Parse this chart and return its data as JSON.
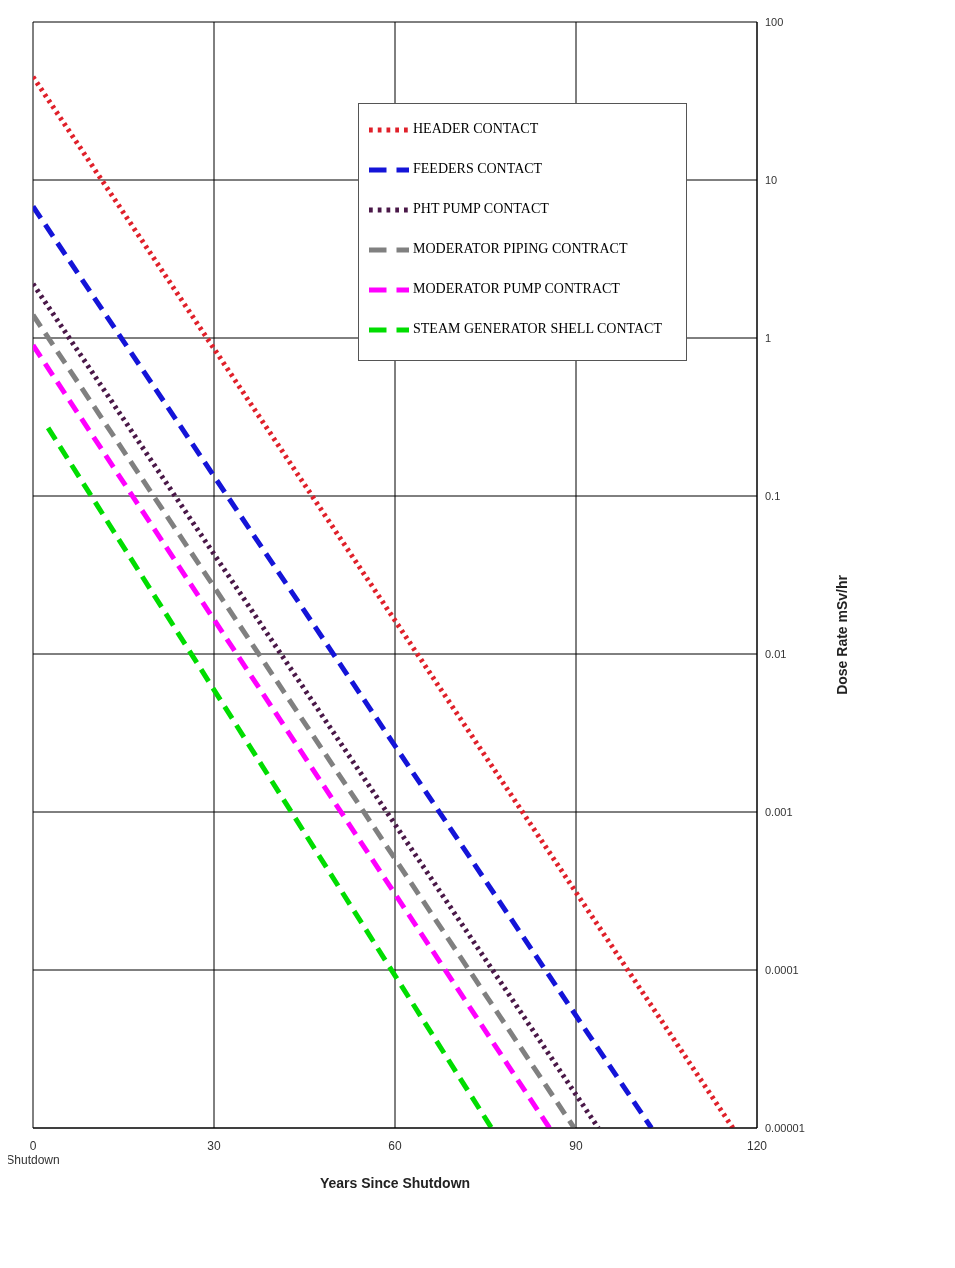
{
  "chart_data": {
    "type": "line",
    "xlabel": "Years Since Shutdown",
    "ylabel": "Dose Rate mSv/hr",
    "xlim": [
      0,
      120
    ],
    "xticks": [
      {
        "value": 0,
        "label": "0\nShutdown"
      },
      30,
      60,
      90,
      120
    ],
    "ylim": [
      1e-05,
      100
    ],
    "yticks": [
      {
        "value": 1e-05,
        "label": "0.00001"
      },
      0.0001,
      0.001,
      0.01,
      0.1,
      1,
      10,
      100
    ],
    "log": "y",
    "grid": true,
    "legend": "top right",
    "marker": "none",
    "series": [
      {
        "name": "HEADER CONTACT",
        "color": "#e0202a",
        "line_style": "dotted",
        "x": [
          0,
          116
        ],
        "values": [
          45,
          1e-05
        ]
      },
      {
        "name": "FEEDERS CONTACT",
        "color": "#1414d8",
        "line_style": "dashed",
        "x": [
          0,
          102.5
        ],
        "values": [
          6.8,
          1e-05
        ]
      },
      {
        "name": "PHT PUMP CONTACT",
        "color": "#4a1848",
        "line_style": "dotted",
        "x": [
          0,
          93.7
        ],
        "values": [
          2.2,
          1e-05
        ]
      },
      {
        "name": "MODERATOR PIPING CONTRACT",
        "color": "#808080",
        "line_style": "dashed",
        "x": [
          0,
          89.7
        ],
        "values": [
          1.4,
          1e-05
        ]
      },
      {
        "name": "MODERATOR PUMP CONTRACT",
        "color": "#ff00ff",
        "line_style": "dashed",
        "x": [
          0,
          85.6
        ],
        "values": [
          0.9,
          1e-05
        ]
      },
      {
        "name": "STEAM GENERATOR SHELL CONTACT",
        "color": "#00dd00",
        "line_style": "dashed",
        "x": [
          2.5,
          76
        ],
        "values": [
          0.27,
          1e-05
        ]
      }
    ]
  }
}
